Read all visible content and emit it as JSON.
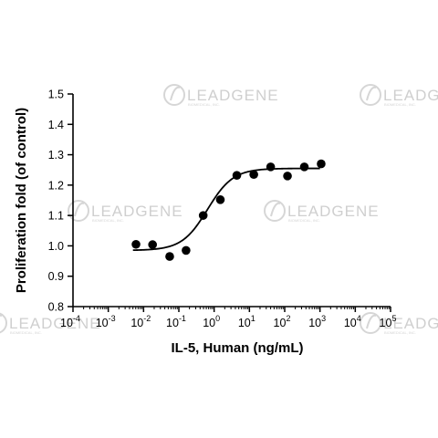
{
  "watermark": {
    "brand": "LEADGENE",
    "tagline": "BIOMEDICAL, INC."
  },
  "chart_data": {
    "type": "scatter",
    "title": "",
    "xlabel": "IL-5, Human (ng/mL)",
    "ylabel": "Proliferation fold (of control)",
    "xscale": "log10",
    "xlim_exp": [
      -4,
      5
    ],
    "x_tick_exponents": [
      -4,
      -3,
      -2,
      -1,
      0,
      1,
      2,
      3,
      4,
      5
    ],
    "x_tick_base": "10",
    "ylim": [
      0.8,
      1.5
    ],
    "y_ticks": [
      "0.8",
      "0.9",
      "1.0",
      "1.1",
      "1.2",
      "1.3",
      "1.4",
      "1.5"
    ],
    "grid": false,
    "legend": "none",
    "marker_color": "#000000",
    "series": [
      {
        "points": [
          {
            "x": 0.0061,
            "y": 1.005
          },
          {
            "x": 0.018,
            "y": 1.004
          },
          {
            "x": 0.055,
            "y": 0.965
          },
          {
            "x": 0.16,
            "y": 0.985
          },
          {
            "x": 0.49,
            "y": 1.1
          },
          {
            "x": 1.5,
            "y": 1.152
          },
          {
            "x": 4.4,
            "y": 1.232
          },
          {
            "x": 13.3,
            "y": 1.235
          },
          {
            "x": 40,
            "y": 1.26
          },
          {
            "x": 120,
            "y": 1.23
          },
          {
            "x": 360,
            "y": 1.26
          },
          {
            "x": 1080,
            "y": 1.27
          }
        ]
      }
    ],
    "fit": {
      "model": "4PL sigmoid",
      "bottom": 0.985,
      "top": 1.255,
      "ec50": 0.65,
      "hill": 1.2,
      "x_range": [
        0.005,
        1000
      ]
    }
  }
}
